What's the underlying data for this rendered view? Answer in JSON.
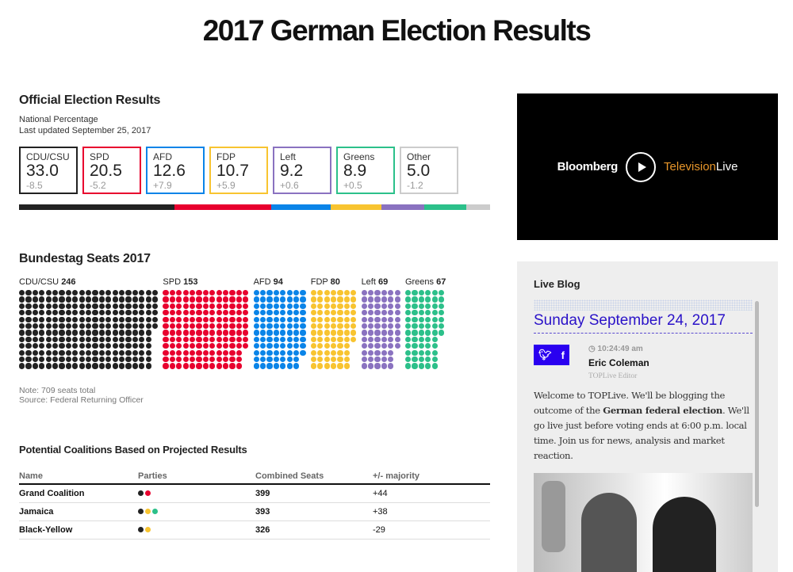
{
  "title": "2017 German Election Results",
  "results": {
    "heading": "Official Election Results",
    "subtitle": "National Percentage",
    "updated": "Last updated September 25, 2017",
    "parties": [
      {
        "name": "CDU/CSU",
        "pct": "33.0",
        "change": "-8.5",
        "color": "#222222"
      },
      {
        "name": "SPD",
        "pct": "20.5",
        "change": "-5.2",
        "color": "#e8002e"
      },
      {
        "name": "AFD",
        "pct": "12.6",
        "change": "+7.9",
        "color": "#0a84e8"
      },
      {
        "name": "FDP",
        "pct": "10.7",
        "change": "+5.9",
        "color": "#f8c430"
      },
      {
        "name": "Left",
        "pct": "9.2",
        "change": "+0.6",
        "color": "#8a72c0"
      },
      {
        "name": "Greens",
        "pct": "8.9",
        "change": "+0.5",
        "color": "#2cc08a"
      },
      {
        "name": "Other",
        "pct": "5.0",
        "change": "-1.2",
        "color": "#cccccc"
      }
    ]
  },
  "seats": {
    "heading": "Bundestag Seats 2017",
    "parties": [
      {
        "name": "CDU/CSU",
        "seats": 246,
        "color": "#222222"
      },
      {
        "name": "SPD",
        "seats": 153,
        "color": "#e8002e"
      },
      {
        "name": "AFD",
        "seats": 94,
        "color": "#0a84e8"
      },
      {
        "name": "FDP",
        "seats": 80,
        "color": "#f8c430"
      },
      {
        "name": "Left",
        "seats": 69,
        "color": "#8a72c0"
      },
      {
        "name": "Greens",
        "seats": 67,
        "color": "#2cc08a"
      }
    ],
    "note": "Note: 709 seats total",
    "source": "Source: Federal Returning Officer"
  },
  "coalitions": {
    "heading": "Potential Coalitions Based on Projected Results",
    "columns": [
      "Name",
      "Parties",
      "Combined Seats",
      "+/- majority"
    ],
    "rows": [
      {
        "name": "Grand Coalition",
        "parties": [
          "#222222",
          "#e8002e"
        ],
        "seats": "399",
        "majority": "+44"
      },
      {
        "name": "Jamaica",
        "parties": [
          "#222222",
          "#f8c430",
          "#2cc08a"
        ],
        "seats": "393",
        "majority": "+38"
      },
      {
        "name": "Black-Yellow",
        "parties": [
          "#222222",
          "#f8c430"
        ],
        "seats": "326",
        "majority": "-29"
      }
    ]
  },
  "video": {
    "brand": "Bloomberg",
    "channel": "Television",
    "live": "Live",
    "icon": "play-icon"
  },
  "blog": {
    "heading": "Live Blog",
    "date": "Sunday September 24, 2017",
    "time": "10:24:49 am",
    "author": "Eric Coleman",
    "role": "TOPLive Editor",
    "body_1": "Welcome to TOPLive. We'll be blogging the outcome of the ",
    "body_bold": "German federal election",
    "body_2": ". We'll go live just before voting ends at 6:00 p.m. local time. Join us for news, analysis and market reaction.",
    "twitter": "twitter-icon",
    "facebook": "facebook-icon"
  }
}
